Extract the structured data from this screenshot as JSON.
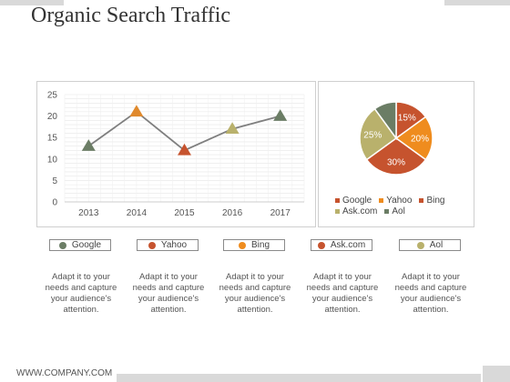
{
  "slide": {
    "title": "Organic Search Traffic",
    "footer": "WWW.COMPANY.COM"
  },
  "colors": {
    "google": "#6b7d65",
    "yahoo": "#d4773a",
    "bing": "#ef8c1e",
    "askcom": "#c6532e",
    "aol": "#b9b16c",
    "line": "#7f7f7f",
    "grid": "#e6e6e6"
  },
  "chart_data": [
    {
      "type": "line",
      "categories": [
        "2013",
        "2014",
        "2015",
        "2016",
        "2017"
      ],
      "values": [
        13,
        21,
        12,
        17,
        20
      ],
      "marker_colors": [
        "#6b7d65",
        "#e0892c",
        "#c6532e",
        "#b9b16c",
        "#6b7d65"
      ],
      "ylim": [
        0,
        25
      ],
      "yticks": [
        "0",
        "5",
        "10",
        "15",
        "20",
        "25"
      ],
      "grid": true,
      "legend": "none"
    },
    {
      "type": "pie",
      "slices": [
        {
          "name": "Google",
          "value": 15,
          "label": "15%",
          "color": "#c6532e"
        },
        {
          "name": "Yahoo",
          "value": 20,
          "label": "20%",
          "color": "#ef8c1e"
        },
        {
          "name": "Bing",
          "value": 30,
          "label": "30%",
          "color": "#c6532e"
        },
        {
          "name": "Ask.com",
          "value": 25,
          "label": "25%",
          "color": "#b9b16c"
        },
        {
          "name": "Aol",
          "value": 10,
          "label": "",
          "color": "#6b7d65"
        }
      ],
      "legend": {
        "placement": "bottom",
        "entries": [
          {
            "name": "Google",
            "color": "#c6532e"
          },
          {
            "name": "Yahoo",
            "color": "#ef8c1e"
          },
          {
            "name": "Bing",
            "color": "#c6532e"
          },
          {
            "name": "Ask.com",
            "color": "#b9b16c"
          },
          {
            "name": "Aol",
            "color": "#6b7d65"
          }
        ]
      }
    }
  ],
  "pills": [
    {
      "label": "Google",
      "color": "#6b7d65"
    },
    {
      "label": "Yahoo",
      "color": "#c6532e"
    },
    {
      "label": "Bing",
      "color": "#ef8c1e"
    },
    {
      "label": "Ask.com",
      "color": "#c6532e"
    },
    {
      "label": "Aol",
      "color": "#b9b16c"
    }
  ],
  "descriptions": [
    "Adapt it to your needs and capture your audience's attention.",
    "Adapt it to your needs and capture your audience's attention.",
    "Adapt it to your needs and capture your audience's attention.",
    "Adapt it to your needs and capture your audience's attention.",
    "Adapt it to your needs and capture your audience's attention."
  ]
}
